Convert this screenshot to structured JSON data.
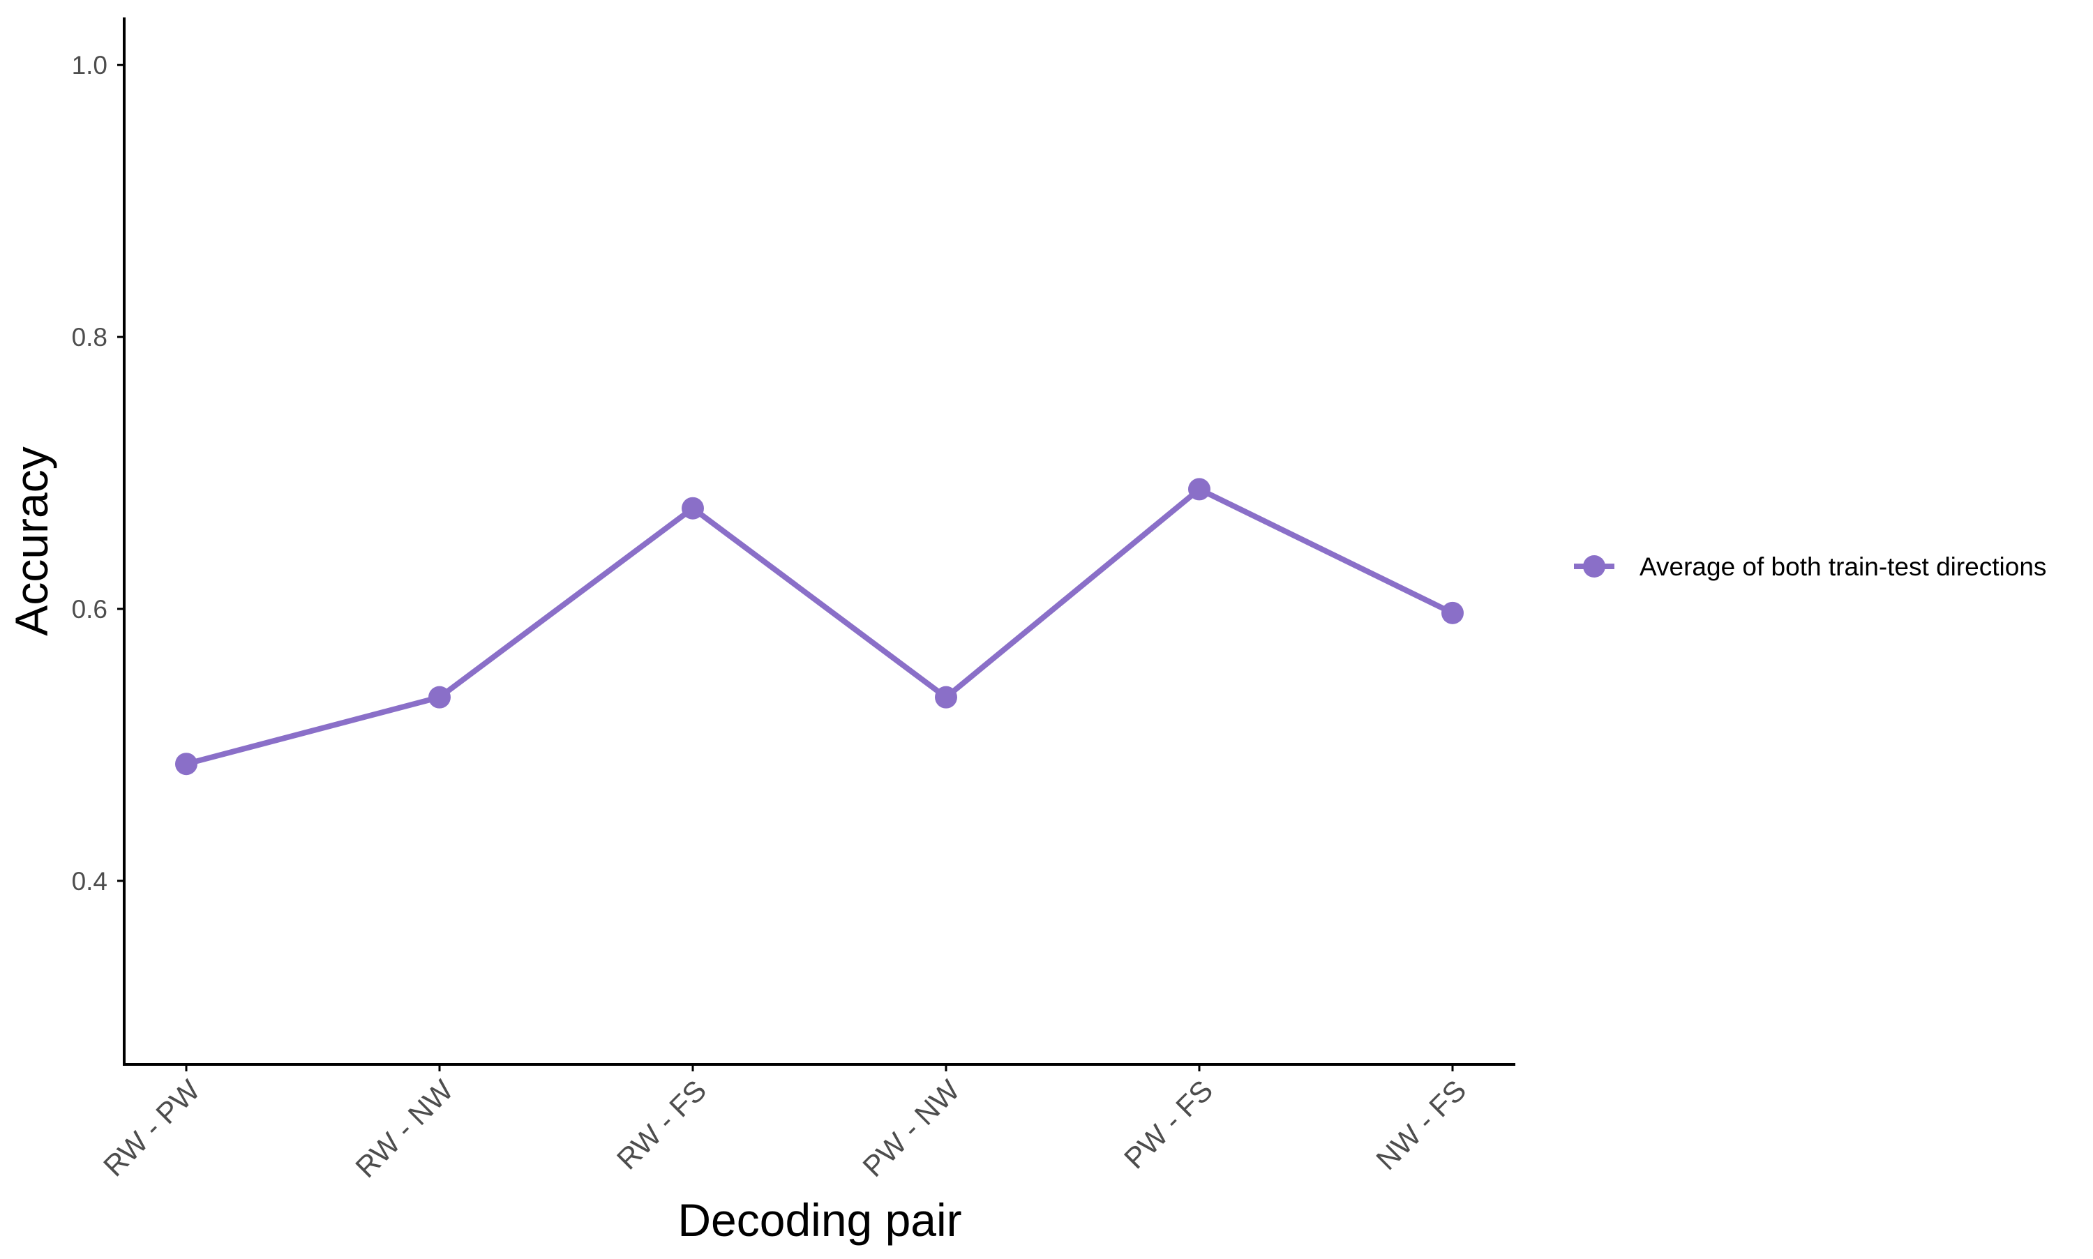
{
  "chart_data": {
    "type": "line",
    "categories": [
      "RW - PW",
      "RW - NW",
      "RW - FS",
      "PW - NW",
      "PW - FS",
      "NW - FS"
    ],
    "series": [
      {
        "name": "Average of both train-test directions",
        "values": [
          0.486,
          0.535,
          0.674,
          0.535,
          0.688,
          0.597
        ],
        "color": "#8A6FC8"
      }
    ],
    "xlabel": "Decoding pair",
    "ylabel": "Accuracy",
    "ylim": [
      0.265,
      1.035
    ],
    "yticks": [
      0.4,
      0.6,
      0.8,
      1.0
    ],
    "ytick_labels": [
      "0.4",
      "0.6",
      "0.8",
      "1.0"
    ],
    "grid": false,
    "legend_position": "right",
    "marker": "circle"
  }
}
